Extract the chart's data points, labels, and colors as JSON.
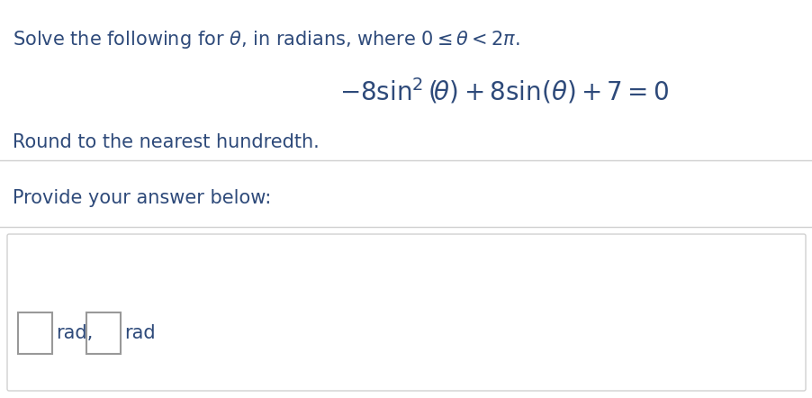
{
  "bg_color": "#ffffff",
  "text_color": "#2e4a7a",
  "rad_color": "#8b6914",
  "line1": "Solve the following for $\\theta$, in radians, where $0 \\leq \\theta < 2\\pi$.",
  "equation": "$-8\\sin^2(\\!\\theta) + 8\\sin(\\theta) + 7 = 0$",
  "line2": "Round to the nearest hundredth.",
  "line3": "Provide your answer below:",
  "label_rad1": "rad,",
  "label_rad2": "rad",
  "sep_color": "#d0d0d0",
  "box_edge_color": "#999999",
  "font_size_text": 15,
  "font_size_eq": 20,
  "fig_width": 9.03,
  "fig_height": 4.42,
  "dpi": 100
}
